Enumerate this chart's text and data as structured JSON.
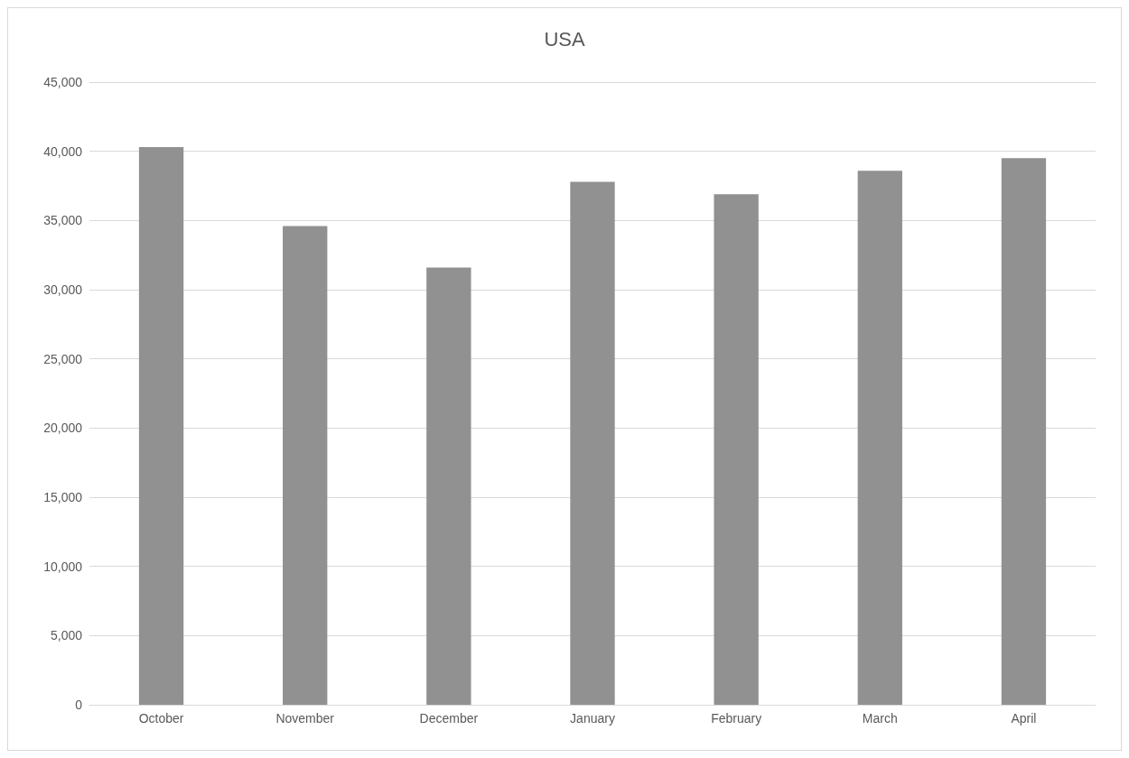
{
  "chart_data": {
    "type": "bar",
    "title": "USA",
    "categories": [
      "October",
      "November",
      "December",
      "January",
      "February",
      "March",
      "April"
    ],
    "values": [
      40300,
      34600,
      31600,
      37800,
      36900,
      38600,
      39500
    ],
    "color": "#919191",
    "ylim": [
      0,
      45000
    ],
    "yticks": [
      0,
      {
        "value": 5000,
        "label": "5,000"
      },
      {
        "value": 10000,
        "label": "10,000"
      },
      {
        "value": 15000,
        "label": "15,000"
      },
      {
        "value": 20000,
        "label": "20,000"
      },
      {
        "value": 25000,
        "label": "25,000"
      },
      {
        "value": 30000,
        "label": "30,000"
      },
      {
        "value": 35000,
        "label": "35,000"
      },
      {
        "value": 40000,
        "label": "40,000"
      },
      {
        "value": 45000,
        "label": "45,000"
      }
    ],
    "grid": "y"
  }
}
